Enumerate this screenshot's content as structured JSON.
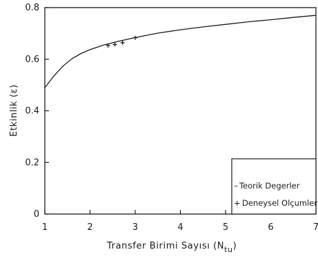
{
  "chart_data": {
    "type": "line",
    "xlabel": "Transfer Birimi Sayısı (N",
    "xlabel_sub": "tu",
    "xlabel_close": ")",
    "ylabel": "Etkinlik (ε)",
    "xlim": [
      1,
      7
    ],
    "ylim": [
      0,
      0.8
    ],
    "x_ticks": [
      "1",
      "2",
      "3",
      "4",
      "5",
      "6",
      "7"
    ],
    "y_ticks": [
      "0",
      "0.2",
      "0.4",
      "0.6",
      "0.8"
    ],
    "legend_position": "bottom-right",
    "series": [
      {
        "name": "Teorik Degerler",
        "marker": "line",
        "x": [
          1.0,
          1.2,
          1.4,
          1.6,
          1.8,
          2.0,
          2.3,
          2.6,
          3.0,
          3.5,
          4.0,
          4.5,
          5.0,
          5.5,
          6.0,
          6.5,
          7.0
        ],
        "y": [
          0.49,
          0.535,
          0.573,
          0.602,
          0.622,
          0.637,
          0.655,
          0.668,
          0.684,
          0.701,
          0.714,
          0.725,
          0.735,
          0.745,
          0.753,
          0.762,
          0.77
        ]
      },
      {
        "name": "Deneysel Olçumler",
        "marker": "plus",
        "x": [
          2.4,
          2.55,
          2.72,
          3.0
        ],
        "y": [
          0.653,
          0.657,
          0.664,
          0.683
        ]
      }
    ]
  }
}
